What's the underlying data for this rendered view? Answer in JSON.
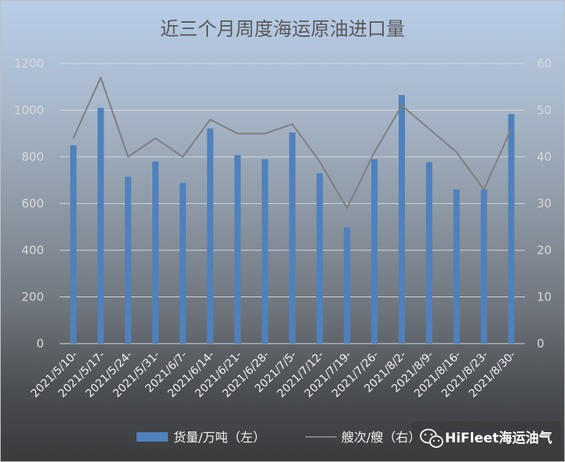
{
  "chart_data": {
    "type": "bar",
    "title": "近三个月周度海运原油进口量",
    "categories": [
      "2021/5/10-",
      "2021/5/17-",
      "2021/5/24-",
      "2021/5/31-",
      "2021/6/7-",
      "2021/6/14-",
      "2021/6/21-",
      "2021/6/28-",
      "2021/7/5-",
      "2021/7/12-",
      "2021/7/19-",
      "2021/7/26-",
      "2021/8/2-",
      "2021/8/9-",
      "2021/8/16-",
      "2021/8/23-",
      "2021/8/30-"
    ],
    "series": [
      {
        "name": "货量/万吨（左）",
        "type": "bar",
        "axis": "left",
        "color": "#4f81bd",
        "values": [
          850,
          1010,
          715,
          780,
          688,
          922,
          808,
          790,
          905,
          730,
          498,
          790,
          1065,
          777,
          660,
          660,
          983
        ]
      },
      {
        "name": "艘次/艘（右）",
        "type": "line",
        "axis": "right",
        "color": "#7f7f7f",
        "values": [
          44,
          57,
          40,
          44,
          40,
          48,
          45,
          45,
          47,
          39,
          29,
          41,
          51,
          46,
          41,
          33,
          46
        ]
      }
    ],
    "y_left": {
      "min": 0,
      "max": 1200,
      "ticks": [
        "0",
        "200",
        "400",
        "600",
        "800",
        "1000",
        "1200"
      ]
    },
    "y_right": {
      "min": 0,
      "max": 60,
      "ticks": [
        "0",
        "10",
        "20",
        "30",
        "40",
        "50",
        "60"
      ]
    },
    "grid": true,
    "legend": "bottom"
  },
  "watermark": {
    "text": "HiFleet海运油气",
    "icon": "wechat-icon"
  }
}
